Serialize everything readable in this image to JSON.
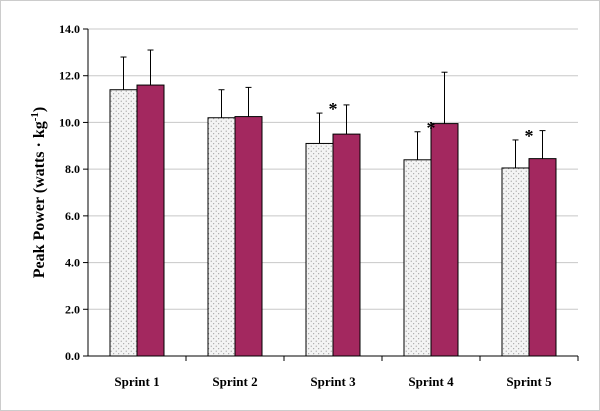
{
  "chart_data": {
    "type": "bar",
    "title": "",
    "xlabel": "",
    "ylabel": "Peak Power (watts · kg",
    "ylabel_superscript": "-1",
    "ylabel_suffix": ")",
    "categories": [
      "Sprint 1",
      "Sprint 2",
      "Sprint 3",
      "Sprint 4",
      "Sprint 5"
    ],
    "series": [
      {
        "values": [
          11.4,
          10.2,
          9.1,
          8.4,
          8.05
        ],
        "errors": [
          1.4,
          1.2,
          1.3,
          1.2,
          1.2
        ],
        "fill": "#f2f2f2",
        "pattern": "dotted"
      },
      {
        "values": [
          11.6,
          10.25,
          9.5,
          9.95,
          8.45
        ],
        "errors": [
          1.5,
          1.25,
          1.25,
          2.2,
          1.2
        ],
        "fill": "#a3285f",
        "pattern": "solid"
      }
    ],
    "significance": [
      "",
      "",
      "*",
      "*",
      "*"
    ],
    "ylim": [
      0,
      14
    ],
    "yticks": [
      0,
      2,
      4,
      6,
      8,
      10,
      12,
      14
    ],
    "ytick_labels": [
      "0.0",
      "2.0",
      "4.0",
      "6.0",
      "8.0",
      "10.0",
      "12.0",
      "14.0"
    ],
    "grid": true,
    "legend": "none"
  }
}
